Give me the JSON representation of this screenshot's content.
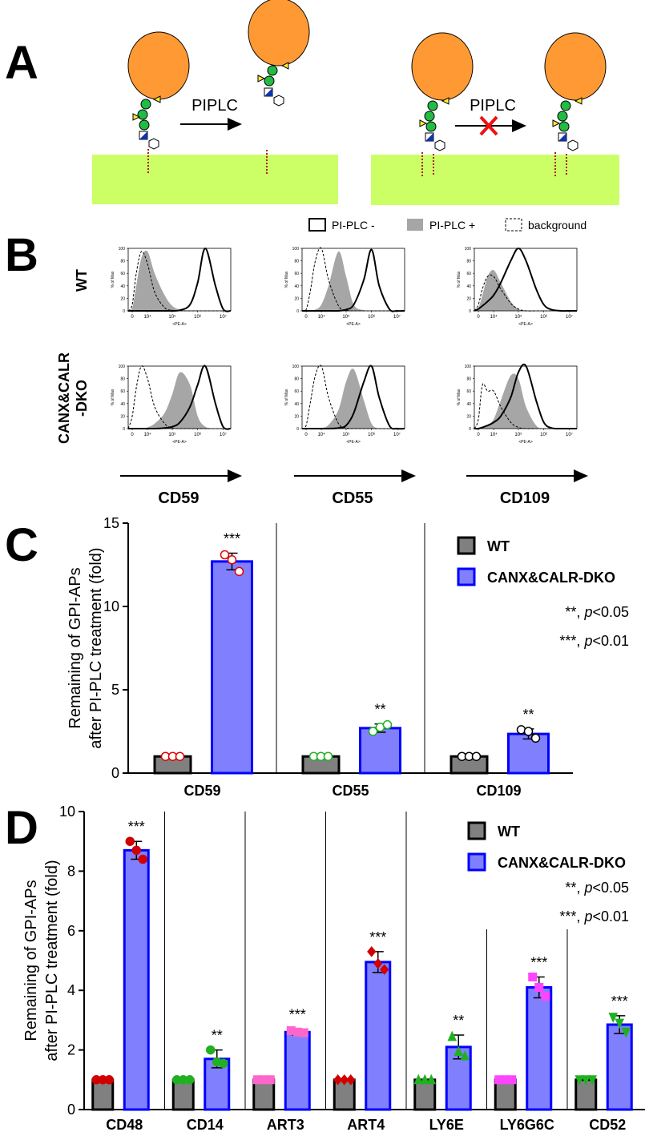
{
  "diagram": {
    "panel_label": "A",
    "arrow_labels": [
      "PIPLC",
      "PIPLC"
    ]
  },
  "chart_data": [
    {
      "type": "flow-histogram",
      "panel_label": "B",
      "x_label": "<PE-A>",
      "y_label": "% of Max",
      "xscale": "biexponential",
      "x": [
        -2000,
        0,
        2000,
        5000,
        10000,
        20000,
        50000,
        100000,
        200000,
        500000,
        1000000,
        2000000,
        5000000,
        10000000,
        20000000
      ],
      "xlim": [
        -2000,
        20000000
      ],
      "xticks": [
        0,
        {
          "value": 10000,
          "label": "10⁴"
        },
        {
          "value": 100000,
          "label": "10⁵"
        },
        {
          "value": 1000000,
          "label": "10⁶"
        },
        {
          "value": 10000000,
          "label": "10⁷"
        }
      ],
      "ylim": [
        0,
        100
      ],
      "yticks": [
        0,
        20,
        40,
        60,
        80,
        100
      ],
      "legend": [
        {
          "name": "PI-PLC -",
          "color": "#000000",
          "style": "outline"
        },
        {
          "name": "PI-PLC +",
          "color": "#a6a6a6",
          "style": "filled"
        },
        {
          "name": "background",
          "color": "#000000",
          "style": "dashed"
        }
      ],
      "columns": [
        "CD59",
        "CD55",
        "CD109"
      ],
      "rows": [
        {
          "label": [
            "WT"
          ],
          "plots": [
            {
              "series": [
                {
                  "values": [
                    0,
                    0,
                    0,
                    0,
                    0,
                    0,
                    0,
                    0,
                    1,
                    10,
                    45,
                    100,
                    40,
                    3,
                    0
                  ]
                },
                {
                  "values": [
                    0,
                    5,
                    40,
                    85,
                    95,
                    60,
                    25,
                    8,
                    2,
                    0,
                    0,
                    0,
                    0,
                    0,
                    0
                  ]
                },
                {
                  "values": [
                    0,
                    10,
                    60,
                    95,
                    75,
                    30,
                    5,
                    1,
                    0,
                    0,
                    0,
                    0,
                    0,
                    0,
                    0
                  ]
                }
              ]
            },
            {
              "series": [
                {
                  "values": [
                    0,
                    0,
                    0,
                    0,
                    0,
                    0,
                    0,
                    2,
                    10,
                    50,
                    98,
                    40,
                    3,
                    0,
                    0
                  ]
                },
                {
                  "values": [
                    0,
                    0,
                    0,
                    2,
                    10,
                    40,
                    95,
                    55,
                    10,
                    1,
                    0,
                    0,
                    0,
                    0,
                    0
                  ]
                },
                {
                  "values": [
                    0,
                    2,
                    30,
                    80,
                    100,
                    50,
                    8,
                    1,
                    0,
                    0,
                    0,
                    0,
                    0,
                    0,
                    0
                  ]
                }
              ]
            },
            {
              "series": [
                {
                  "values": [
                    0,
                    3,
                    8,
                    15,
                    25,
                    45,
                    80,
                    100,
                    80,
                    35,
                    10,
                    2,
                    0,
                    0,
                    0
                  ]
                },
                {
                  "values": [
                    0,
                    5,
                    25,
                    55,
                    65,
                    45,
                    15,
                    3,
                    0,
                    0,
                    0,
                    0,
                    0,
                    0,
                    0
                  ]
                },
                {
                  "values": [
                    0,
                    10,
                    35,
                    55,
                    55,
                    35,
                    12,
                    3,
                    0,
                    0,
                    0,
                    0,
                    0,
                    0,
                    0
                  ]
                }
              ]
            }
          ]
        },
        {
          "label": [
            "CANX&CALR",
            "-DKO"
          ],
          "plots": [
            {
              "series": [
                {
                  "values": [
                    0,
                    0,
                    0,
                    0,
                    0,
                    0,
                    1,
                    3,
                    10,
                    35,
                    70,
                    100,
                    40,
                    3,
                    0
                  ]
                },
                {
                  "values": [
                    0,
                    0,
                    0,
                    0,
                    2,
                    8,
                    25,
                    55,
                    90,
                    70,
                    20,
                    3,
                    0,
                    0,
                    0
                  ]
                },
                {
                  "values": [
                    0,
                    20,
                    65,
                    100,
                    80,
                    35,
                    8,
                    1,
                    0,
                    0,
                    0,
                    0,
                    0,
                    0,
                    0
                  ]
                }
              ]
            },
            {
              "series": [
                {
                  "values": [
                    0,
                    0,
                    0,
                    0,
                    0,
                    0,
                    1,
                    5,
                    25,
                    75,
                    100,
                    50,
                    5,
                    0,
                    0
                  ]
                },
                {
                  "values": [
                    0,
                    0,
                    0,
                    0,
                    1,
                    6,
                    30,
                    75,
                    95,
                    45,
                    8,
                    0,
                    0,
                    0,
                    0
                  ]
                },
                {
                  "values": [
                    0,
                    5,
                    40,
                    85,
                    100,
                    50,
                    8,
                    1,
                    0,
                    0,
                    0,
                    0,
                    0,
                    0,
                    0
                  ]
                }
              ]
            },
            {
              "series": [
                {
                  "values": [
                    0,
                    0,
                    2,
                    5,
                    10,
                    20,
                    50,
                    90,
                    100,
                    45,
                    10,
                    1,
                    0,
                    0,
                    0
                  ]
                },
                {
                  "values": [
                    0,
                    0,
                    2,
                    5,
                    15,
                    45,
                    85,
                    80,
                    35,
                    5,
                    0,
                    0,
                    0,
                    0,
                    0
                  ]
                },
                {
                  "values": [
                    0,
                    15,
                    70,
                    60,
                    60,
                    35,
                    10,
                    2,
                    0,
                    0,
                    0,
                    0,
                    0,
                    0,
                    0
                  ]
                }
              ]
            }
          ]
        }
      ]
    },
    {
      "type": "bar",
      "panel_label": "C",
      "y_label": [
        "Remaining of GPI-APs",
        "after PI-PLC treatment (fold)"
      ],
      "categories": [
        "CD59",
        "CD55",
        "CD109"
      ],
      "series": [
        {
          "name": "WT",
          "color": "#808080",
          "edge_color": "#000000",
          "values": [
            1,
            1,
            1
          ],
          "errors": [
            0,
            0,
            0
          ],
          "points": [
            [
              1,
              1,
              1
            ],
            [
              1,
              1,
              1
            ],
            [
              1,
              1,
              1
            ]
          ]
        },
        {
          "name": "CANX&CALR-DKO",
          "color": "#8080ff",
          "edge_color": "#0000ff",
          "values": [
            12.7,
            2.7,
            2.35
          ],
          "errors": [
            0.5,
            0.25,
            0.3
          ],
          "points": [
            [
              13.1,
              12.8,
              12.1
            ],
            [
              2.5,
              2.75,
              2.9
            ],
            [
              2.6,
              2.5,
              2.1
            ]
          ]
        }
      ],
      "point_colors": [
        "#e00000",
        "#20b020",
        "#000000"
      ],
      "point_shapes": [
        "circle-open",
        "circle-open",
        "circle-open"
      ],
      "annotations": [
        "***",
        "**",
        "**"
      ],
      "significance_notes": [
        [
          "**, ",
          "p",
          "<0.05"
        ],
        [
          "***, ",
          "p",
          "<0.01"
        ]
      ],
      "ylim": [
        0,
        15
      ],
      "yticks": [
        0,
        5,
        10,
        15
      ]
    },
    {
      "type": "bar",
      "panel_label": "D",
      "y_label": [
        "Remaining of GPI-APs",
        "after PI-PLC treatment (fold)"
      ],
      "categories": [
        "CD48",
        "CD14",
        "ART3",
        "ART4",
        "LY6E",
        "LY6G6C",
        "CD52"
      ],
      "series": [
        {
          "name": "WT",
          "color": "#808080",
          "edge_color": "#000000",
          "values": [
            1,
            1,
            1,
            1,
            1,
            1,
            1
          ],
          "errors": [
            0,
            0,
            0,
            0,
            0,
            0,
            0
          ],
          "points": [
            [
              1,
              1,
              1
            ],
            [
              1,
              1,
              1
            ],
            [
              1,
              1,
              1
            ],
            [
              1,
              1,
              1
            ],
            [
              1,
              1,
              1
            ],
            [
              1,
              1,
              1
            ],
            [
              1,
              1,
              1
            ]
          ]
        },
        {
          "name": "CANX&CALR-DKO",
          "color": "#8080ff",
          "edge_color": "#0000ff",
          "values": [
            8.7,
            1.7,
            2.6,
            4.95,
            2.1,
            4.1,
            2.85
          ],
          "errors": [
            0.3,
            0.3,
            0.1,
            0.35,
            0.4,
            0.35,
            0.3
          ],
          "points": [
            [
              9.0,
              8.7,
              8.4
            ],
            [
              2.0,
              1.6,
              1.55
            ],
            [
              2.65,
              2.6,
              2.58
            ],
            [
              5.3,
              4.9,
              4.7
            ],
            [
              2.45,
              1.95,
              1.8
            ],
            [
              4.45,
              4.1,
              3.8
            ],
            [
              3.1,
              2.9,
              2.6
            ]
          ]
        }
      ],
      "point_colors": [
        "#d00000",
        "#20b020",
        "#ff66cc",
        "#d00000",
        "#20b020",
        "#ff44ff",
        "#20b020"
      ],
      "point_shapes": [
        "circle",
        "circle",
        "square",
        "diamond",
        "triangle",
        "square",
        "triangle-down"
      ],
      "annotations": [
        "***",
        "**",
        "***",
        "***",
        "**",
        "***",
        "***"
      ],
      "significance_notes": [
        [
          "**, ",
          "p",
          "<0.05"
        ],
        [
          "***, ",
          "p",
          "<0.01"
        ]
      ],
      "ylim": [
        0,
        10
      ],
      "yticks": [
        0,
        2,
        4,
        6,
        8,
        10
      ]
    }
  ]
}
